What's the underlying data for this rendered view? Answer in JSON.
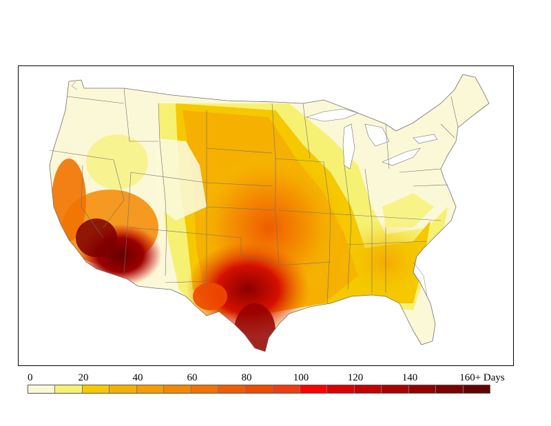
{
  "legend": {
    "labels": [
      "0",
      "20",
      "40",
      "60",
      "80",
      "100",
      "120",
      "140",
      "160+ Days"
    ],
    "colors": [
      "#fbf8d8",
      "#f6f173",
      "#f5c800",
      "#f5b000",
      "#f59c00",
      "#f38800",
      "#f27200",
      "#f05c00",
      "#ee4a00",
      "#f03c10",
      "#fe0000",
      "#dd0000",
      "#c40000",
      "#ac0000",
      "#940000",
      "#7c0000",
      "#640000"
    ]
  },
  "map": {
    "region": "contiguous-united-states",
    "colors": {
      "background": "#fbf8d8",
      "water": "#ffffff",
      "border": "#6e6e6e"
    }
  }
}
